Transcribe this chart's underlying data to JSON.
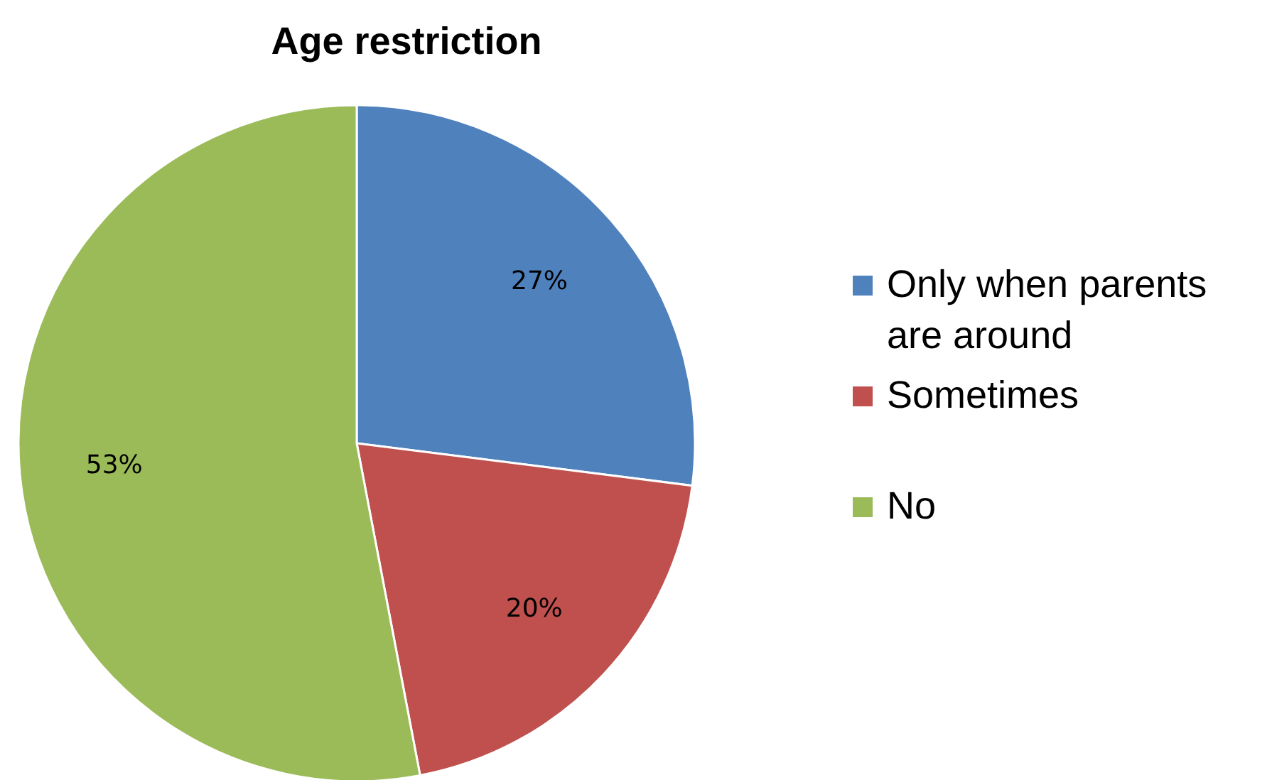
{
  "chart_data": {
    "type": "pie",
    "title": "Age restriction",
    "categories": [
      "Only when parents are around",
      "Sometimes",
      "No"
    ],
    "values": [
      27,
      20,
      53
    ],
    "colors": [
      "#4f81bd",
      "#c0504d",
      "#9bbb59"
    ],
    "value_labels": [
      "27%",
      "20%",
      "53%"
    ],
    "legend": "right"
  }
}
